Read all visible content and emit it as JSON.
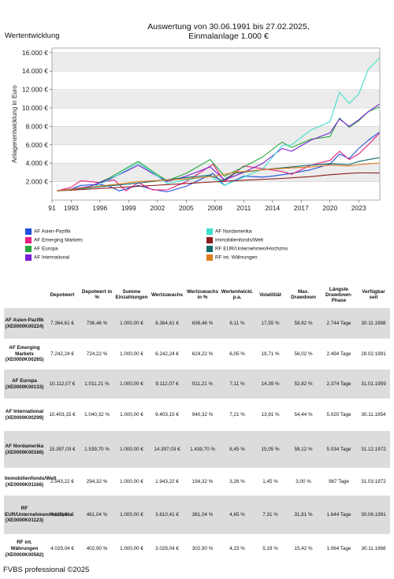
{
  "header": {
    "title_line1": "Auswertung von 30.06.1991 bis 27.02.2025,",
    "title_line2": "Einmalanlage 1.000 €",
    "section": "Wertentwicklung"
  },
  "footer": {
    "text": "FVBS professional ©2025"
  },
  "chart_data": {
    "type": "line",
    "ylabel": "Anlagenentwicklung in Euro",
    "xlabel": "",
    "xlim": [
      1991,
      2025.2
    ],
    "ylim": [
      0,
      16500
    ],
    "x_ticks": [
      "91",
      "1993",
      "1996",
      "1999",
      "2002",
      "2005",
      "2008",
      "2011",
      "2014",
      "2017",
      "2020",
      "2023"
    ],
    "x_tick_values": [
      1991,
      1993,
      1996,
      1999,
      2002,
      2005,
      2008,
      2011,
      2014,
      2017,
      2020,
      2023
    ],
    "y_ticks": [
      "2.000 €",
      "4.000 €",
      "6.000 €",
      "8.000 €",
      "10.000 €",
      "12.000 €",
      "14.000 €",
      "16.000 €"
    ],
    "y_tick_values": [
      2000,
      4000,
      6000,
      8000,
      10000,
      12000,
      14000,
      16000
    ],
    "grid": true,
    "legend_position": "bottom",
    "series": [
      {
        "name": "AF Asien-Pazifik",
        "color": "#1f4fe0",
        "x": [
          1991.5,
          1993,
          1994,
          1996,
          1997,
          1998,
          2000,
          2001.5,
          2003,
          2005,
          2007.8,
          2009,
          2011,
          2013,
          2014,
          2016,
          2018,
          2020,
          2021,
          2022,
          2023,
          2024,
          2025.15
        ],
        "y": [
          1000,
          1200,
          1600,
          1700,
          1500,
          1000,
          1600,
          1150,
          900,
          1500,
          2900,
          1600,
          2600,
          2500,
          2600,
          2900,
          3300,
          3900,
          5000,
          4500,
          5600,
          6500,
          7365
        ]
      },
      {
        "name": "AF Emerging Markets",
        "color": "#e8207e",
        "x": [
          1991.5,
          1993,
          1994,
          1996,
          1997.5,
          1998.7,
          2000,
          2001.5,
          2003,
          2005,
          2007.8,
          2009,
          2011,
          2013,
          2015,
          2016,
          2018,
          2020,
          2021,
          2022,
          2023,
          2024,
          2025.15
        ],
        "y": [
          1000,
          1400,
          2100,
          1900,
          2200,
          1000,
          1900,
          1100,
          1100,
          2000,
          3900,
          2000,
          3700,
          3400,
          3100,
          2800,
          3800,
          4300,
          5300,
          4400,
          5000,
          6000,
          7242
        ]
      },
      {
        "name": "AF Europa",
        "color": "#24a83c",
        "x": [
          1991.5,
          1993,
          1995,
          1997,
          1998.5,
          2000,
          2001.5,
          2003,
          2005,
          2007.5,
          2009,
          2011,
          2013,
          2015,
          2016,
          2018,
          2020,
          2021,
          2022,
          2023,
          2024,
          2025.15
        ],
        "y": [
          1000,
          1200,
          1500,
          2400,
          3300,
          4200,
          3100,
          2100,
          2900,
          4400,
          2600,
          3600,
          4700,
          6300,
          5700,
          6600,
          6900,
          8900,
          7900,
          8600,
          9600,
          10112
        ]
      },
      {
        "name": "AF International",
        "color": "#7a1fd6",
        "x": [
          1991.5,
          1993,
          1995,
          1997,
          1998.5,
          2000,
          2001.5,
          2003,
          2005,
          2007.5,
          2009,
          2011,
          2013,
          2015,
          2016,
          2018,
          2020,
          2021,
          2022,
          2023,
          2024,
          2025.15
        ],
        "y": [
          1000,
          1200,
          1500,
          2300,
          3000,
          3800,
          2900,
          2000,
          2600,
          3600,
          2200,
          3000,
          4000,
          5600,
          5300,
          6500,
          7300,
          8800,
          8000,
          8700,
          9600,
          10403
        ]
      },
      {
        "name": "AF Nordamerika",
        "color": "#3ee0cc",
        "x": [
          1991.5,
          1993,
          1995,
          1997,
          1998.5,
          2000,
          2001.5,
          2003,
          2005,
          2007.5,
          2009,
          2011,
          2013,
          2015,
          2016,
          2018,
          2020,
          2021,
          2022,
          2023,
          2024,
          2025.15
        ],
        "y": [
          1000,
          1100,
          1300,
          2200,
          3100,
          4000,
          3000,
          1800,
          2200,
          2600,
          1600,
          2500,
          3400,
          5900,
          6000,
          7600,
          8500,
          11700,
          10500,
          11500,
          14200,
          15397
        ]
      },
      {
        "name": "Immobilienfonds/Welt",
        "color": "#8b1a1a",
        "x": [
          1991.5,
          1995,
          2000,
          2005,
          2010,
          2015,
          2018,
          2020,
          2022,
          2023,
          2024,
          2025.15
        ],
        "y": [
          1000,
          1200,
          1500,
          1800,
          2100,
          2350,
          2550,
          2750,
          2900,
          2950,
          2950,
          2943
        ]
      },
      {
        "name": "RF EUR/Unternehmen/Hochzins",
        "color": "#0f6b6b",
        "x": [
          1991.5,
          1995,
          2000,
          2005,
          2007.5,
          2008.8,
          2010,
          2013,
          2016,
          2018,
          2020,
          2022,
          2023,
          2025.15
        ],
        "y": [
          1000,
          1350,
          1850,
          2450,
          2700,
          2100,
          2900,
          3300,
          3600,
          3800,
          3950,
          3850,
          4200,
          4610
        ]
      },
      {
        "name": "RF int. Währungen",
        "color": "#e07b20",
        "x": [
          1991.5,
          1995,
          2000,
          2005,
          2008,
          2010,
          2013,
          2016,
          2018,
          2020,
          2022,
          2023,
          2025.15
        ],
        "y": [
          1000,
          1400,
          2000,
          2300,
          2600,
          3000,
          3300,
          3500,
          3600,
          3800,
          3700,
          3850,
          4029
        ]
      }
    ]
  },
  "table": {
    "headers": [
      "",
      "Depotwert",
      "Depotwert in %",
      "Summe Einzahlungen",
      "Wertzuwachs",
      "Wertzuwachs in %",
      "Wertentwickl. p.a.",
      "Volatilität",
      "Max. Drawdown",
      "Längste Drawdown-Phase",
      "Verfügbar seit"
    ],
    "rows": [
      [
        "AF Asien-Pazifik (XE0000K00224)",
        "7.364,61 €",
        "736,46 %",
        "1.000,00 €",
        "6.364,61 €",
        "636,46 %",
        "6,11 %",
        "17,55 %",
        "58,82 %",
        "2.744 Tage",
        "30.11.1988"
      ],
      [
        "AF Emerging Markets (XE0000K00265)",
        "7.242,24 €",
        "724,22 %",
        "1.000,00 €",
        "6.242,24 €",
        "624,22 %",
        "6,05 %",
        "19,71 %",
        "56,02 %",
        "2.494 Tage",
        "28.02.1991"
      ],
      [
        "AF Europa (XE0000K00133)",
        "10.112,07 €",
        "1.011,21 %",
        "1.000,00 €",
        "9.112,07 €",
        "911,21 %",
        "7,11 %",
        "14,39 %",
        "52,82 %",
        "2.374 Tage",
        "31.01.1959"
      ],
      [
        "AF International (XE0000K00299)",
        "10.403,15 €",
        "1.040,32 %",
        "1.000,00 €",
        "9.403,15 €",
        "940,32 %",
        "7,21 %",
        "13,91 %",
        "54,44 %",
        "5.020 Tage",
        "30.11.1954"
      ],
      [
        "AF Nordamerika (XE0000K00166)",
        "15.397,03 €",
        "1.539,70 %",
        "1.000,00 €",
        "14.397,03 €",
        "1.439,70 %",
        "8,45 %",
        "15,05 %",
        "58,12 %",
        "5.034 Tage",
        "31.12.1972"
      ],
      [
        "Immobilienfonds/Welt (XE0000K01166)",
        "2.943,22 €",
        "294,32 %",
        "1.000,00 €",
        "1.943,22 €",
        "194,32 %",
        "3,26 %",
        "1,45 %",
        "3,00 %",
        "967 Tage",
        "31.03.1972"
      ],
      [
        "RF EUR/Unternehmen/Hochzins (XE0000K01123)",
        "4.610,41 €",
        "461,04 %",
        "1.000,00 €",
        "3.610,41 €",
        "361,04 %",
        "4,65 %",
        "7,31 %",
        "31,81 %",
        "1.644 Tage",
        "30.06.1991"
      ],
      [
        "RF int. Währungen (XE0000K00582)",
        "4.029,04 €",
        "402,90 %",
        "1.000,00 €",
        "3.029,04 €",
        "302,90 %",
        "4,23 %",
        "5,19 %",
        "15,42 %",
        "1.064 Tage",
        "30.11.1968"
      ]
    ]
  }
}
